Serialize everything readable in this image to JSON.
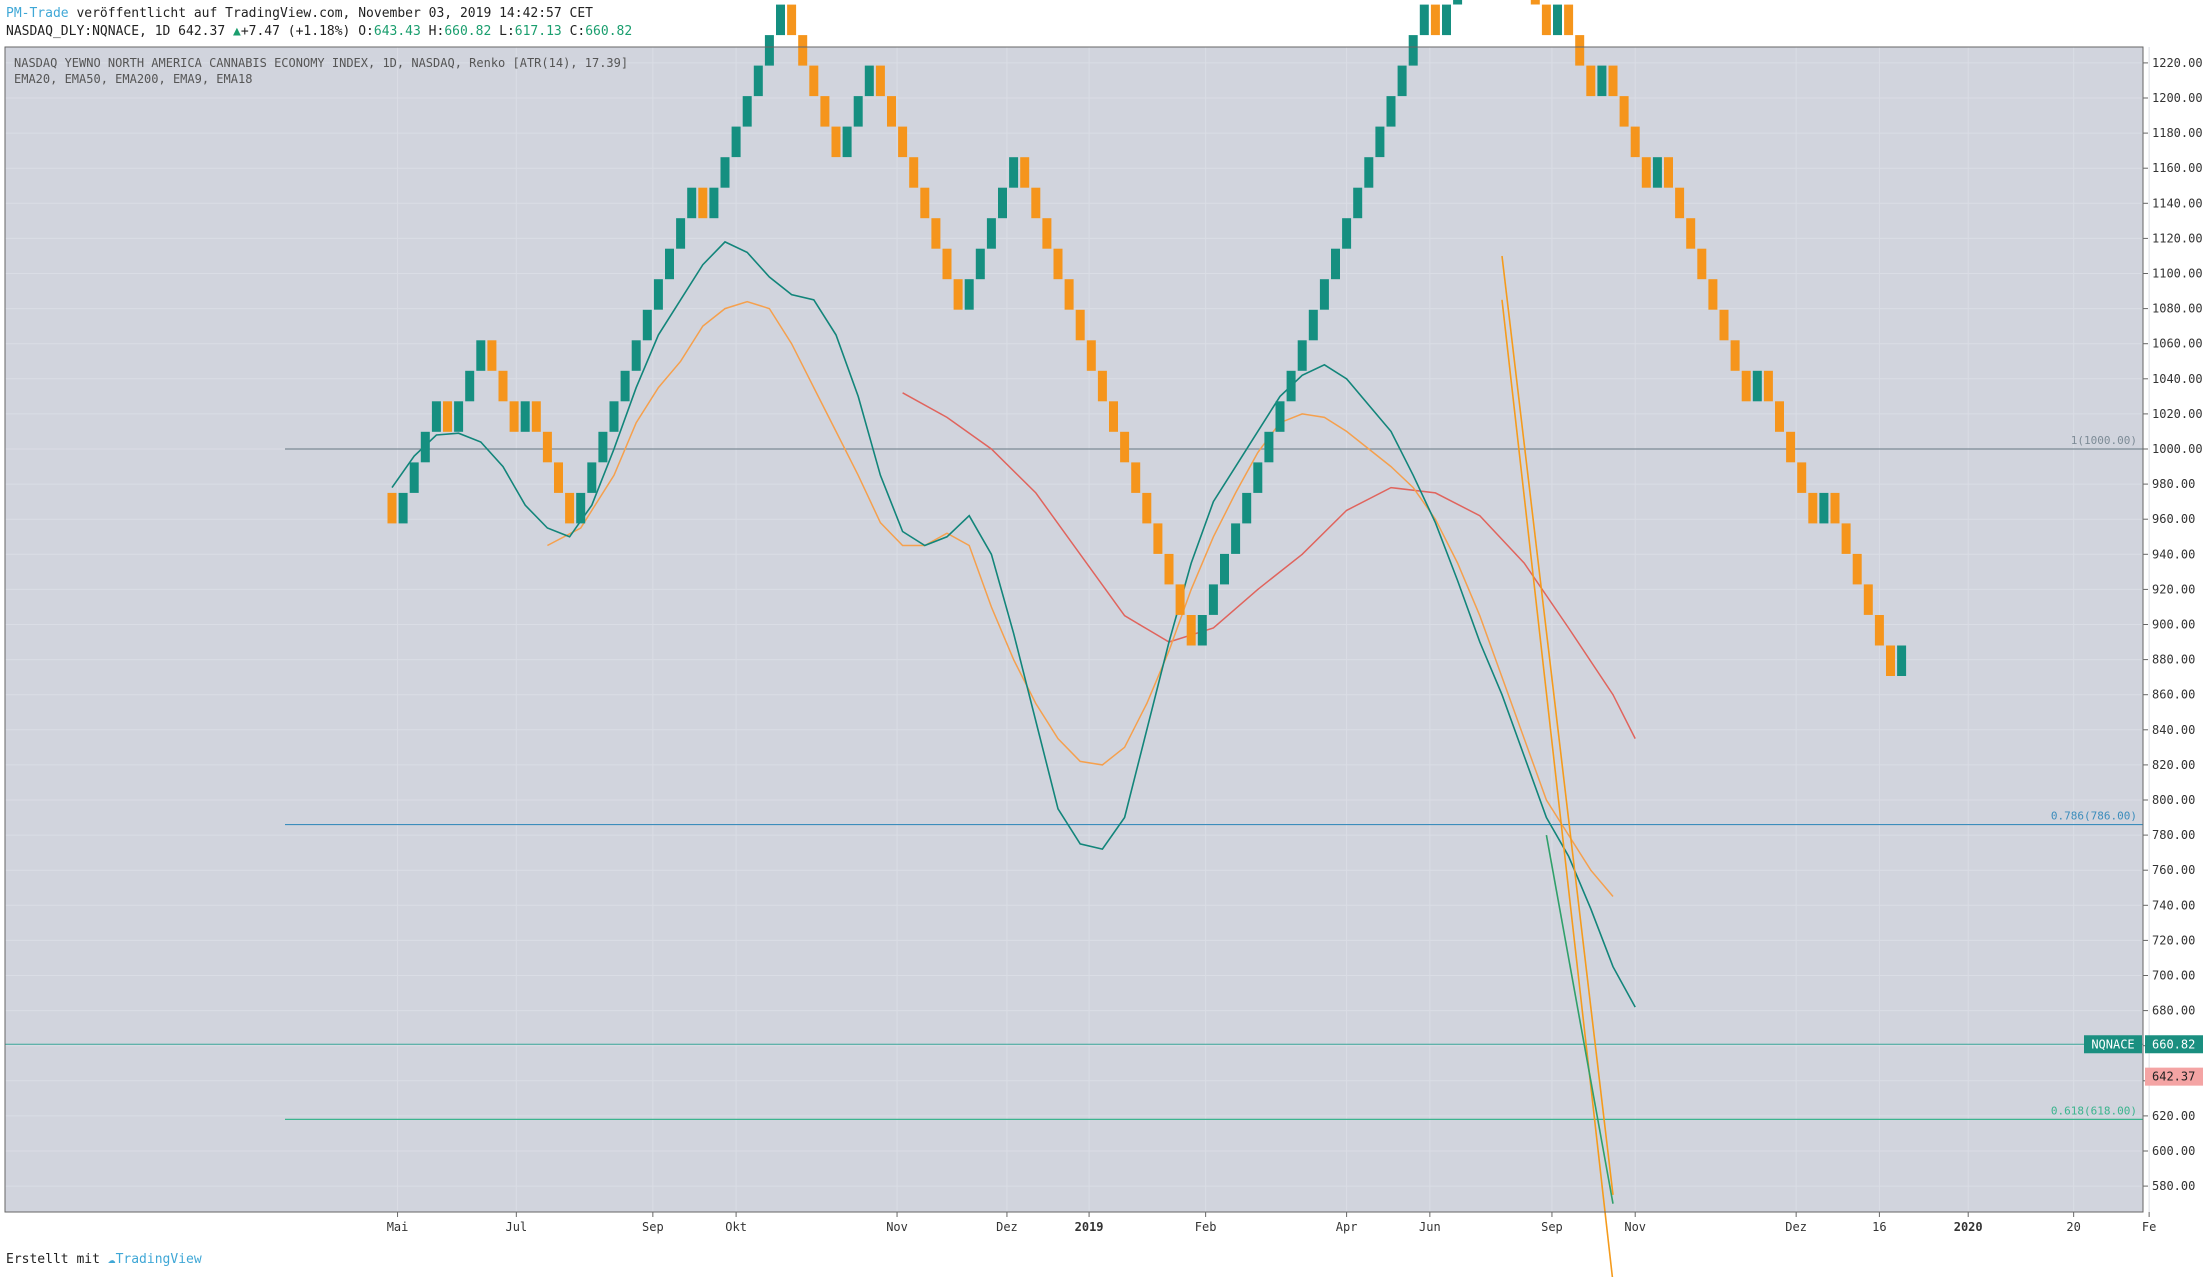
{
  "header": {
    "publisher": "PM-Trade",
    "published_text": "veröffentlicht auf TradingView.com, November 03, 2019 14:42:57 CET",
    "symbol_line": "NASDAQ_DLY:NQNACE, 1D 642.37",
    "change": "+7.47 (+1.18%)",
    "ohlc_o_label": "O:",
    "ohlc_o": "643.43",
    "ohlc_h_label": "H:",
    "ohlc_h": "660.82",
    "ohlc_l_label": "L:",
    "ohlc_l": "617.13",
    "ohlc_c_label": "C:",
    "ohlc_c": "660.82"
  },
  "footer": {
    "prefix": "Erstellt mit",
    "brand": "TradingView"
  },
  "chart_data": {
    "type": "renko",
    "title": "NASDAQ YEWNO NORTH AMERICA CANNABIS ECONOMY INDEX, 1D, NASDAQ, Renko [ATR(14), 17.39]",
    "indicators_label": "EMA20, EMA50, EMA200, EMA9, EMA18",
    "brick_size": 17.39,
    "ylim": [
      565,
      1230
    ],
    "y_ticks": [
      580,
      600,
      620,
      640,
      660,
      680,
      700,
      720,
      740,
      760,
      780,
      800,
      820,
      840,
      860,
      880,
      900,
      920,
      940,
      960,
      980,
      1000,
      1020,
      1040,
      1060,
      1080,
      1100,
      1120,
      1140,
      1160,
      1180,
      1200,
      1220
    ],
    "x_ticks": [
      {
        "label": "Mai",
        "i": 0.5,
        "bold": false
      },
      {
        "label": "Jul",
        "i": 11.2,
        "bold": false
      },
      {
        "label": "Sep",
        "i": 23.5,
        "bold": false
      },
      {
        "label": "Okt",
        "i": 31,
        "bold": false
      },
      {
        "label": "Nov",
        "i": 45.5,
        "bold": false
      },
      {
        "label": "Dez",
        "i": 55.4,
        "bold": false
      },
      {
        "label": "2019",
        "i": 62.8,
        "bold": true
      },
      {
        "label": "Feb",
        "i": 73.3,
        "bold": false
      },
      {
        "label": "Apr",
        "i": 86,
        "bold": false
      },
      {
        "label": "Jun",
        "i": 93.5,
        "bold": false
      },
      {
        "label": "Sep",
        "i": 104.5,
        "bold": false
      },
      {
        "label": "Nov",
        "i": 112,
        "bold": false
      },
      {
        "label": "Dez",
        "i": 126.5,
        "bold": false
      },
      {
        "label": "16",
        "i": 134,
        "bold": false
      },
      {
        "label": "2020",
        "i": 142,
        "bold": true
      },
      {
        "label": "20",
        "i": 151.5,
        "bold": false
      },
      {
        "label": "Fe",
        "i": 158.3,
        "bold": false
      }
    ],
    "start_price": 975,
    "bricks": [
      -1,
      1,
      1,
      1,
      1,
      -1,
      1,
      1,
      1,
      -1,
      -1,
      -1,
      1,
      -1,
      -1,
      -1,
      -1,
      1,
      1,
      1,
      1,
      1,
      1,
      1,
      1,
      1,
      1,
      1,
      -1,
      1,
      1,
      1,
      1,
      1,
      1,
      1,
      -1,
      -1,
      -1,
      -1,
      -1,
      1,
      1,
      1,
      -1,
      -1,
      -1,
      -1,
      -1,
      -1,
      -1,
      -1,
      1,
      1,
      1,
      1,
      1,
      -1,
      -1,
      -1,
      -1,
      -1,
      -1,
      -1,
      -1,
      -1,
      -1,
      -1,
      -1,
      -1,
      -1,
      -1,
      -1,
      1,
      1,
      1,
      1,
      1,
      1,
      1,
      1,
      1,
      1,
      1,
      1,
      1,
      1,
      1,
      1,
      1,
      1,
      1,
      1,
      1,
      -1,
      1,
      1,
      1,
      1,
      1,
      -1,
      -1,
      -1,
      -1,
      -1,
      1,
      -1,
      -1,
      -1,
      1,
      -1,
      -1,
      -1,
      -1,
      1,
      -1,
      -1,
      -1,
      -1,
      -1,
      -1,
      -1,
      -1,
      1,
      -1,
      -1,
      -1,
      -1,
      -1,
      1,
      -1,
      -1,
      -1,
      -1,
      -1,
      -1,
      1
    ],
    "ema_green": [
      [
        0,
        978
      ],
      [
        2,
        996
      ],
      [
        4,
        1008
      ],
      [
        6,
        1009
      ],
      [
        8,
        1004
      ],
      [
        10,
        990
      ],
      [
        12,
        968
      ],
      [
        14,
        955
      ],
      [
        16,
        950
      ],
      [
        18,
        968
      ],
      [
        20,
        1000
      ],
      [
        22,
        1035
      ],
      [
        24,
        1065
      ],
      [
        26,
        1085
      ],
      [
        28,
        1105
      ],
      [
        30,
        1118
      ],
      [
        32,
        1112
      ],
      [
        34,
        1098
      ],
      [
        36,
        1088
      ],
      [
        38,
        1085
      ],
      [
        40,
        1065
      ],
      [
        42,
        1030
      ],
      [
        44,
        985
      ],
      [
        46,
        953
      ],
      [
        48,
        945
      ],
      [
        50,
        950
      ],
      [
        52,
        962
      ],
      [
        54,
        940
      ],
      [
        56,
        895
      ],
      [
        58,
        845
      ],
      [
        60,
        795
      ],
      [
        62,
        775
      ],
      [
        64,
        772
      ],
      [
        66,
        790
      ],
      [
        68,
        840
      ],
      [
        70,
        890
      ],
      [
        72,
        935
      ],
      [
        74,
        970
      ],
      [
        76,
        990
      ],
      [
        78,
        1010
      ],
      [
        80,
        1030
      ],
      [
        82,
        1042
      ],
      [
        84,
        1048
      ],
      [
        86,
        1040
      ],
      [
        88,
        1025
      ],
      [
        90,
        1010
      ],
      [
        92,
        985
      ],
      [
        94,
        958
      ],
      [
        96,
        925
      ],
      [
        98,
        890
      ],
      [
        100,
        860
      ],
      [
        102,
        825
      ],
      [
        104,
        790
      ],
      [
        106,
        768
      ],
      [
        108,
        738
      ],
      [
        110,
        705
      ],
      [
        112,
        682
      ]
    ],
    "ema_orange_fast": [
      [
        14,
        945
      ],
      [
        17,
        955
      ],
      [
        20,
        985
      ],
      [
        22,
        1015
      ],
      [
        24,
        1035
      ],
      [
        26,
        1050
      ],
      [
        28,
        1070
      ],
      [
        30,
        1080
      ],
      [
        32,
        1084
      ],
      [
        34,
        1080
      ],
      [
        36,
        1060
      ],
      [
        38,
        1035
      ],
      [
        40,
        1010
      ],
      [
        42,
        985
      ],
      [
        44,
        958
      ],
      [
        46,
        945
      ],
      [
        48,
        945
      ],
      [
        50,
        952
      ],
      [
        52,
        945
      ],
      [
        54,
        910
      ],
      [
        56,
        880
      ],
      [
        58,
        855
      ],
      [
        60,
        835
      ],
      [
        62,
        822
      ],
      [
        64,
        820
      ],
      [
        66,
        830
      ],
      [
        68,
        855
      ],
      [
        70,
        885
      ],
      [
        72,
        920
      ],
      [
        74,
        950
      ],
      [
        76,
        975
      ],
      [
        78,
        998
      ],
      [
        80,
        1015
      ],
      [
        82,
        1020
      ],
      [
        84,
        1018
      ],
      [
        86,
        1010
      ],
      [
        88,
        1000
      ],
      [
        90,
        990
      ],
      [
        92,
        978
      ],
      [
        94,
        960
      ],
      [
        96,
        935
      ],
      [
        98,
        905
      ],
      [
        100,
        870
      ],
      [
        102,
        835
      ],
      [
        104,
        800
      ],
      [
        106,
        780
      ],
      [
        108,
        760
      ],
      [
        110,
        745
      ]
    ],
    "ema_red": [
      [
        46,
        1032
      ],
      [
        50,
        1018
      ],
      [
        54,
        1000
      ],
      [
        58,
        975
      ],
      [
        62,
        940
      ],
      [
        66,
        905
      ],
      [
        70,
        890
      ],
      [
        74,
        898
      ],
      [
        78,
        920
      ],
      [
        82,
        940
      ],
      [
        86,
        965
      ],
      [
        90,
        978
      ],
      [
        94,
        975
      ],
      [
        98,
        962
      ],
      [
        102,
        935
      ],
      [
        106,
        898
      ],
      [
        110,
        860
      ],
      [
        112,
        835
      ]
    ],
    "channel_upper": [
      [
        100,
        1110
      ],
      [
        110,
        575
      ]
    ],
    "channel_lower": [
      [
        100,
        1085
      ],
      [
        110,
        525
      ]
    ],
    "channel_mid": [
      [
        104,
        780
      ],
      [
        110,
        570
      ]
    ],
    "fib_levels": [
      {
        "value": 1000,
        "label": "1(1000.00)",
        "color": "#7d8b96"
      },
      {
        "value": 786,
        "label": "0.786(786.00)",
        "color": "#3c8dbc"
      },
      {
        "value": 618,
        "label": "0.618(618.00)",
        "color": "#3bb48e"
      }
    ],
    "last_close_line": 660.82,
    "price_labels": [
      {
        "text": "NQNACE",
        "value": 660.82,
        "bg": "#1a8f80",
        "fg": "#ffffff"
      },
      {
        "text": "660.82",
        "value": 660.82,
        "bg": "#1a8f80",
        "fg": "#ffffff"
      },
      {
        "text": "642.37",
        "value": 642.37,
        "bg": "#f4a4a4",
        "fg": "#222222"
      }
    ],
    "colors": {
      "up": "#158f80",
      "down": "#f5951c",
      "bg": "#d1d4dd",
      "ema_green": "#12857a",
      "ema_orange": "#f5a04d",
      "ema_red": "#e0645d",
      "channel": "#f59b1c",
      "channel_mid": "#2fa06a",
      "grid": "#dadde5"
    }
  }
}
